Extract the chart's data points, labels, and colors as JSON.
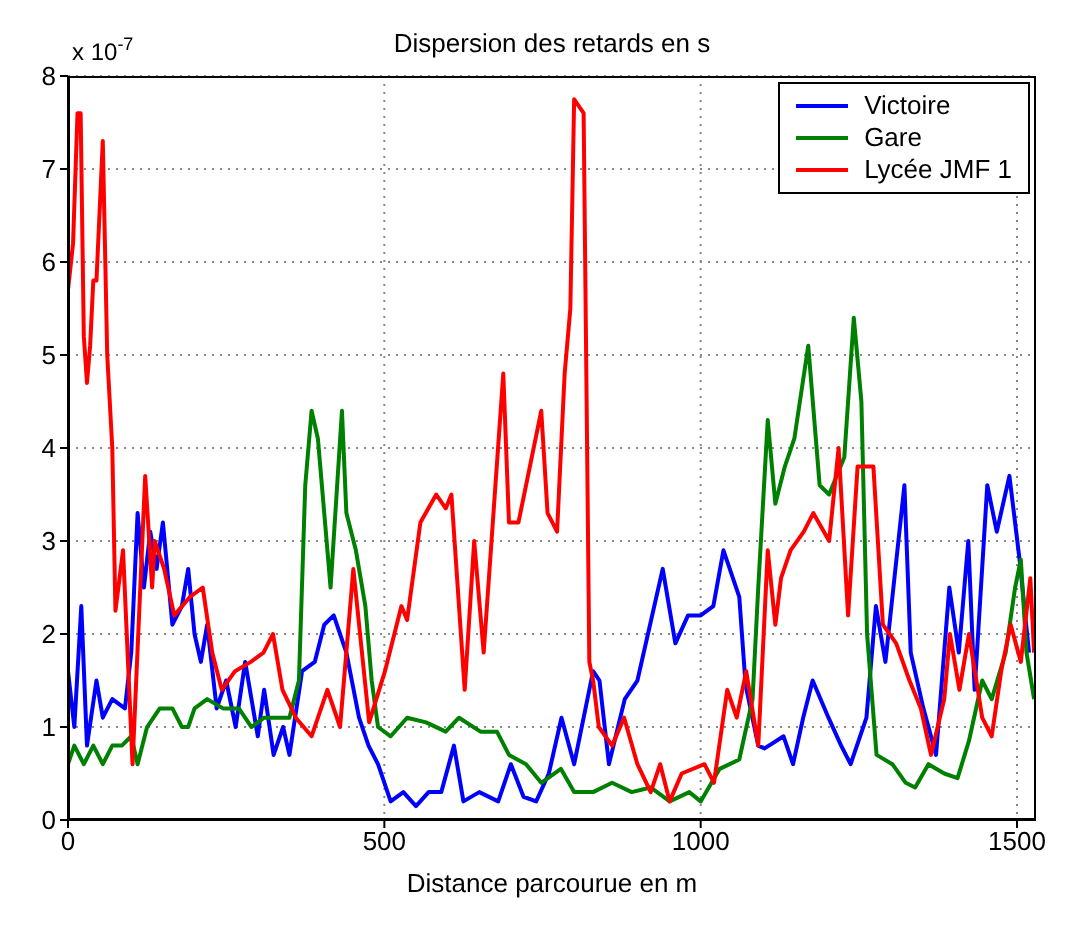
{
  "chart_data": {
    "type": "line",
    "title": "Dispersion des retards en s",
    "xlabel": "Distance parcourue en m",
    "annotations": [
      "x 10$^{-7}$"
    ],
    "xlim": [
      0,
      1530
    ],
    "xticks": [
      0,
      500,
      1000,
      1500
    ],
    "ylim": [
      0,
      8
    ],
    "yticks": [
      0,
      1,
      2,
      3,
      4,
      5,
      6,
      7,
      8
    ],
    "grid": true,
    "legend": "top right",
    "line_style": "solid",
    "series": [
      {
        "name": "Victoire",
        "color": "#0000ff",
        "x": [
          0,
          10,
          21,
          30,
          45,
          55,
          70,
          90,
          100,
          110,
          120,
          130,
          140,
          150,
          165,
          180,
          190,
          200,
          210,
          220,
          235,
          250,
          265,
          280,
          300,
          310,
          325,
          340,
          350,
          370,
          390,
          405,
          420,
          440,
          460,
          475,
          490,
          510,
          530,
          550,
          570,
          590,
          610,
          625,
          650,
          680,
          700,
          720,
          740,
          760,
          780,
          800,
          830,
          840,
          855,
          880,
          900,
          940,
          960,
          980,
          1000,
          1020,
          1036,
          1061,
          1071,
          1091,
          1101,
          1131,
          1146,
          1162,
          1177,
          1202,
          1222,
          1237,
          1262,
          1277,
          1292,
          1322,
          1332,
          1352,
          1372,
          1393,
          1408,
          1423,
          1433,
          1453,
          1468,
          1488,
          1504,
          1519
        ],
        "values": [
          1.6,
          1.0,
          2.3,
          0.8,
          1.5,
          1.1,
          1.3,
          1.2,
          1.8,
          3.3,
          2.5,
          3.1,
          2.7,
          3.2,
          2.1,
          2.3,
          2.7,
          2.0,
          1.7,
          2.1,
          1.2,
          1.5,
          1.0,
          1.7,
          0.9,
          1.4,
          0.7,
          1.0,
          0.7,
          1.6,
          1.7,
          2.1,
          2.2,
          1.8,
          1.1,
          0.8,
          0.6,
          0.2,
          0.3,
          0.15,
          0.3,
          0.3,
          0.8,
          0.2,
          0.3,
          0.2,
          0.6,
          0.25,
          0.2,
          0.5,
          1.1,
          0.6,
          1.6,
          1.5,
          0.6,
          1.3,
          1.5,
          2.7,
          1.9,
          2.2,
          2.2,
          2.3,
          2.9,
          2.4,
          1.45,
          0.8,
          0.77,
          0.9,
          0.6,
          1.1,
          1.5,
          1.1,
          0.8,
          0.6,
          1.1,
          2.3,
          1.7,
          3.6,
          1.8,
          1.2,
          0.7,
          2.5,
          1.8,
          3.0,
          1.4,
          3.6,
          3.1,
          3.7,
          2.8,
          1.8
        ]
      },
      {
        "name": "Gare",
        "color": "#008000",
        "x": [
          0,
          10,
          25,
          40,
          55,
          70,
          85,
          100,
          110,
          125,
          145,
          165,
          180,
          190,
          200,
          220,
          245,
          270,
          290,
          310,
          330,
          350,
          365,
          375,
          385,
          395,
          405,
          415,
          433,
          440,
          455,
          470,
          480,
          490,
          510,
          536,
          566,
          597,
          618,
          652,
          678,
          697,
          724,
          748,
          779,
          800,
          830,
          860,
          891,
          921,
          951,
          982,
          1000,
          1030,
          1061,
          1082,
          1091,
          1106,
          1118,
          1133,
          1148,
          1170,
          1188,
          1203,
          1227,
          1242,
          1254,
          1263,
          1278,
          1303,
          1324,
          1339,
          1360,
          1385,
          1406,
          1424,
          1445,
          1460,
          1482,
          1497,
          1506,
          1515,
          1527
        ],
        "values": [
          0.6,
          0.8,
          0.6,
          0.8,
          0.6,
          0.8,
          0.8,
          0.9,
          0.6,
          1.0,
          1.2,
          1.2,
          1.0,
          1.0,
          1.2,
          1.3,
          1.2,
          1.2,
          1.0,
          1.1,
          1.1,
          1.1,
          1.5,
          3.6,
          4.4,
          4.1,
          3.3,
          2.5,
          4.4,
          3.3,
          2.9,
          2.3,
          1.5,
          1.0,
          0.9,
          1.1,
          1.05,
          0.95,
          1.1,
          0.95,
          0.95,
          0.7,
          0.6,
          0.4,
          0.55,
          0.3,
          0.3,
          0.4,
          0.3,
          0.35,
          0.2,
          0.3,
          0.2,
          0.55,
          0.65,
          1.3,
          2.5,
          4.3,
          3.4,
          3.8,
          4.1,
          5.1,
          3.6,
          3.5,
          3.9,
          5.4,
          4.5,
          2.0,
          0.7,
          0.6,
          0.4,
          0.35,
          0.6,
          0.5,
          0.45,
          0.85,
          1.5,
          1.3,
          1.8,
          2.5,
          2.8,
          1.8,
          1.3
        ]
      },
      {
        "name": "Lycée JMF 1",
        "color": "#ff0000",
        "x": [
          0,
          8,
          15,
          20,
          25,
          30,
          35,
          40,
          45,
          55,
          62,
          70,
          75,
          87,
          102,
          122,
          133,
          137,
          152,
          168,
          193,
          213,
          228,
          243,
          264,
          289,
          309,
          324,
          339,
          360,
          385,
          410,
          430,
          451,
          476,
          501,
          527,
          536,
          557,
          582,
          597,
          606,
          627,
          642,
          657,
          688,
          697,
          712,
          748,
          758,
          773,
          785,
          794,
          800,
          815,
          824,
          830,
          839,
          860,
          879,
          900,
          921,
          936,
          951,
          970,
          1006,
          1021,
          1042,
          1057,
          1072,
          1091,
          1106,
          1118,
          1127,
          1142,
          1163,
          1178,
          1203,
          1218,
          1233,
          1248,
          1273,
          1288,
          1309,
          1330,
          1348,
          1364,
          1385,
          1394,
          1409,
          1424,
          1445,
          1460,
          1475,
          1490,
          1506,
          1521,
          1527
        ],
        "values": [
          5.7,
          6.2,
          7.6,
          7.6,
          5.2,
          4.7,
          5.1,
          5.8,
          5.8,
          7.3,
          5.0,
          4.0,
          2.25,
          2.9,
          0.6,
          3.7,
          2.5,
          3.0,
          2.7,
          2.2,
          2.4,
          2.5,
          1.8,
          1.4,
          1.6,
          1.7,
          1.8,
          2.0,
          1.4,
          1.1,
          0.9,
          1.4,
          1.0,
          2.7,
          1.05,
          1.6,
          2.3,
          2.15,
          3.2,
          3.5,
          3.35,
          3.5,
          1.4,
          3.0,
          1.8,
          4.8,
          3.2,
          3.2,
          4.4,
          3.3,
          3.1,
          4.8,
          5.5,
          7.75,
          7.6,
          1.7,
          1.5,
          1.0,
          0.8,
          1.1,
          0.6,
          0.3,
          0.6,
          0.2,
          0.5,
          0.6,
          0.4,
          1.4,
          1.1,
          1.6,
          0.8,
          2.9,
          2.1,
          2.6,
          2.9,
          3.1,
          3.3,
          3.0,
          4.0,
          2.2,
          3.8,
          3.8,
          2.1,
          1.9,
          1.5,
          1.2,
          0.7,
          1.3,
          2.0,
          1.4,
          2.0,
          1.1,
          0.9,
          1.6,
          2.1,
          1.7,
          2.6,
          1.8
        ]
      }
    ]
  }
}
